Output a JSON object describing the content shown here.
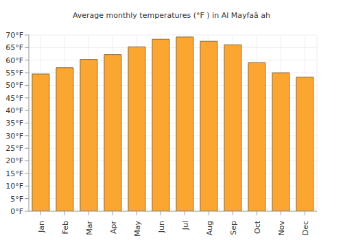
{
  "chart_data": {
    "type": "bar",
    "title": "Average monthly temperatures (°F ) in Al Mayfaâ ah",
    "categories": [
      "Jan",
      "Feb",
      "Mar",
      "Apr",
      "May",
      "Jun",
      "Jul",
      "Aug",
      "Sep",
      "Oct",
      "Nov",
      "Dec"
    ],
    "values": [
      54.5,
      57,
      60.3,
      62.2,
      65.3,
      68.3,
      69.2,
      67.5,
      66.1,
      59,
      55,
      53.3
    ],
    "color": "#fba631",
    "ylim": [
      0,
      70
    ],
    "yticks": [
      {
        "value": 0,
        "label": "0°F"
      },
      {
        "value": 5,
        "label": "5°F"
      },
      {
        "value": 10,
        "label": "10°F"
      },
      {
        "value": 15,
        "label": "15°F"
      },
      {
        "value": 20,
        "label": "20°F"
      },
      {
        "value": 25,
        "label": "25°F"
      },
      {
        "value": 30,
        "label": "30°F"
      },
      {
        "value": 35,
        "label": "35°F"
      },
      {
        "value": 40,
        "label": "40°F"
      },
      {
        "value": 45,
        "label": "45°F"
      },
      {
        "value": 50,
        "label": "50°F"
      },
      {
        "value": 55,
        "label": "55°F"
      },
      {
        "value": 60,
        "label": "60°F"
      },
      {
        "value": 65,
        "label": "65°F"
      },
      {
        "value": 70,
        "label": "70°F"
      }
    ],
    "grid": true
  }
}
